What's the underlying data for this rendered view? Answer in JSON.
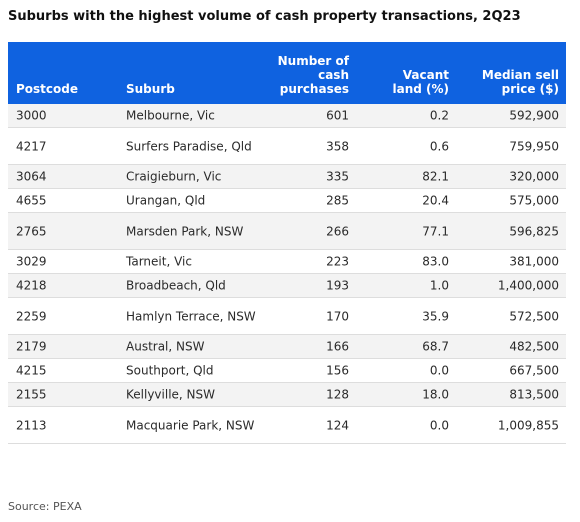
{
  "title": "Suburbs with the highest volume of cash property transactions, 2Q23",
  "source": "Source: PEXA",
  "colors": {
    "header_bg": "#0f62e0",
    "header_text": "#ffffff",
    "row_alt": "#f3f3f3"
  },
  "chart_data": {
    "type": "table",
    "title": "Suburbs with the highest volume of cash property transactions, 2Q23",
    "columns": [
      "Postcode",
      "Suburb",
      "Number of cash purchases",
      "Vacant land (%)",
      "Median sell price ($)"
    ],
    "header_lines": {
      "postcode": [
        "Postcode"
      ],
      "suburb": [
        "Suburb"
      ],
      "cash": [
        "Number of",
        "cash",
        "purchases"
      ],
      "vacant": [
        "Vacant",
        "land (%)"
      ],
      "price": [
        "Median sell",
        "price ($)"
      ]
    },
    "rows": [
      {
        "postcode": "3000",
        "suburb": "Melbourne, Vic",
        "cash": "601",
        "vacant": "0.2",
        "price": "592,900"
      },
      {
        "postcode": "4217",
        "suburb": "Surfers Paradise, Qld",
        "cash": "358",
        "vacant": "0.6",
        "price": "759,950"
      },
      {
        "postcode": "3064",
        "suburb": "Craigieburn, Vic",
        "cash": "335",
        "vacant": "82.1",
        "price": "320,000"
      },
      {
        "postcode": "4655",
        "suburb": "Urangan, Qld",
        "cash": "285",
        "vacant": "20.4",
        "price": "575,000"
      },
      {
        "postcode": "2765",
        "suburb": "Marsden Park, NSW",
        "cash": "266",
        "vacant": "77.1",
        "price": "596,825"
      },
      {
        "postcode": "3029",
        "suburb": "Tarneit, Vic",
        "cash": "223",
        "vacant": "83.0",
        "price": "381,000"
      },
      {
        "postcode": "4218",
        "suburb": "Broadbeach, Qld",
        "cash": "193",
        "vacant": "1.0",
        "price": "1,400,000"
      },
      {
        "postcode": "2259",
        "suburb": "Hamlyn Terrace, NSW",
        "cash": "170",
        "vacant": "35.9",
        "price": "572,500"
      },
      {
        "postcode": "2179",
        "suburb": "Austral, NSW",
        "cash": "166",
        "vacant": "68.7",
        "price": "482,500"
      },
      {
        "postcode": "4215",
        "suburb": "Southport, Qld",
        "cash": "156",
        "vacant": "0.0",
        "price": "667,500"
      },
      {
        "postcode": "2155",
        "suburb": "Kellyville, NSW",
        "cash": "128",
        "vacant": "18.0",
        "price": "813,500"
      },
      {
        "postcode": "2113",
        "suburb": "Macquarie Park, NSW",
        "cash": "124",
        "vacant": "0.0",
        "price": "1,009,855"
      }
    ]
  }
}
